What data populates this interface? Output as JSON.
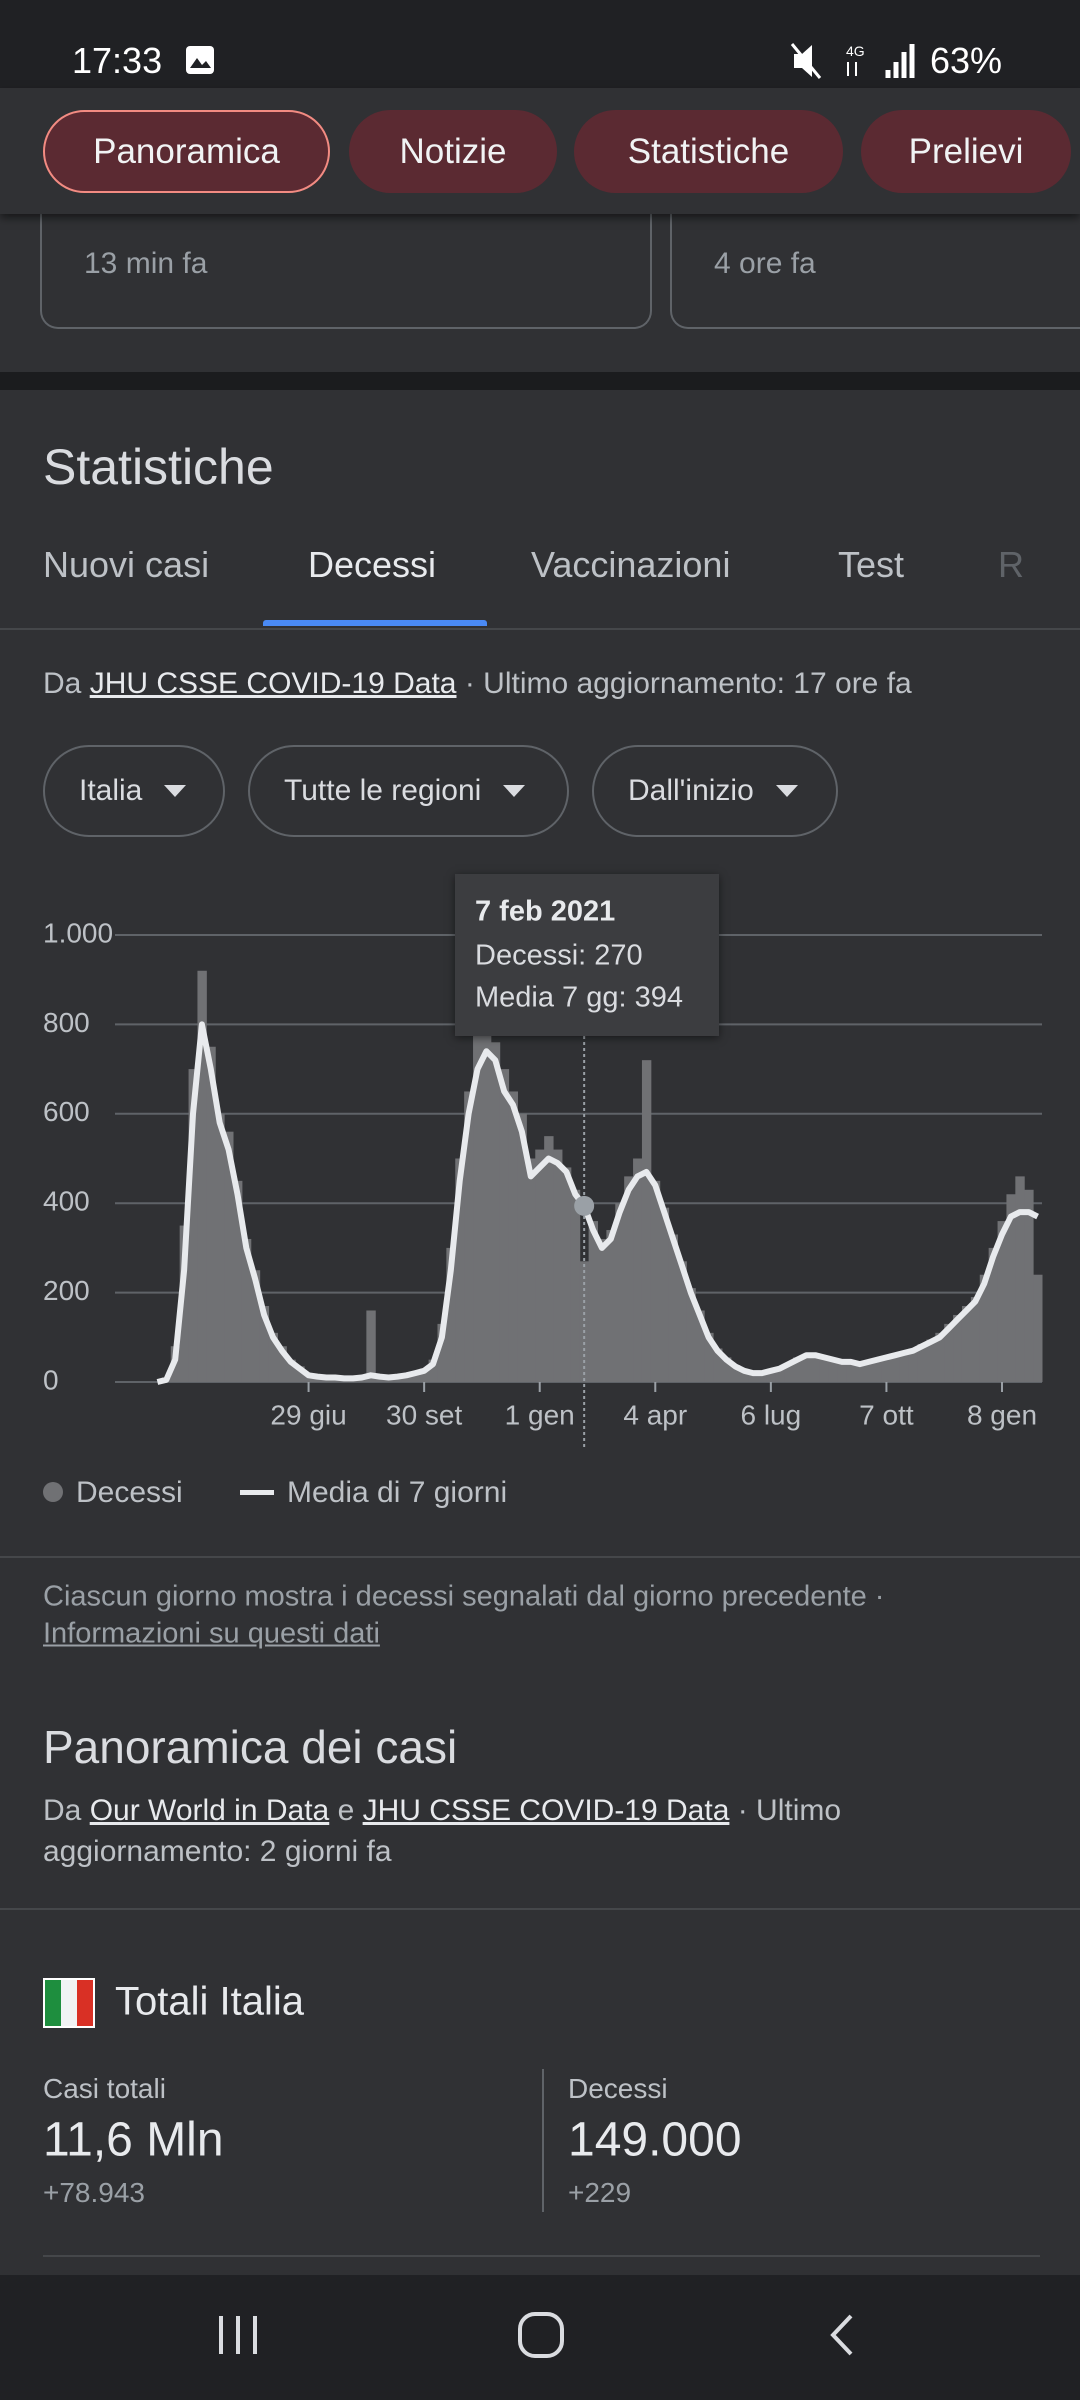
{
  "status_bar": {
    "time": "17:33",
    "battery": "63%"
  },
  "nav_chips": [
    "Panoramica",
    "Notizie",
    "Statistiche",
    "Prelievi"
  ],
  "news_cards": [
    {
      "time": "13 min fa"
    },
    {
      "time": "4 ore fa"
    }
  ],
  "stats_section": {
    "title": "Statistiche",
    "tabs": [
      "Nuovi casi",
      "Decessi",
      "Vaccinazioni",
      "Test",
      "R"
    ],
    "source": {
      "prefix": "Da",
      "link": "JHU CSSE COVID-19 Data",
      "suffix": "· Ultimo aggiornamento: 17 ore fa"
    },
    "filters": [
      "Italia",
      "Tutte le regioni",
      "Dall'inizio"
    ],
    "tooltip": {
      "date": "7 feb 2021",
      "deaths": "Decessi: 270",
      "average": "Media 7 gg: 394"
    },
    "note": "Ciascun giorno mostra i decessi segnalati dal giorno precedente ·",
    "note_link": "Informazioni su questi dati"
  },
  "chart_data": {
    "type": "bar",
    "categories": [
      null,
      null,
      null,
      null,
      null,
      null,
      null,
      null,
      null,
      null,
      null,
      null,
      null,
      null,
      null,
      null,
      null,
      "29 giu",
      null,
      null,
      null,
      null,
      null,
      null,
      null,
      null,
      null,
      null,
      null,
      null,
      "30 set",
      null,
      null,
      null,
      null,
      null,
      null,
      null,
      null,
      null,
      null,
      null,
      null,
      "1 gen",
      null,
      null,
      null,
      null,
      null,
      null,
      null,
      null,
      null,
      null,
      null,
      null,
      "4 apr",
      null,
      null,
      null,
      null,
      null,
      null,
      null,
      null,
      null,
      null,
      null,
      null,
      "6 lug",
      null,
      null,
      null,
      null,
      null,
      null,
      null,
      null,
      null,
      null,
      null,
      null,
      "7 ott",
      null,
      null,
      null,
      null,
      null,
      null,
      null,
      null,
      null,
      null,
      null,
      null,
      "8 gen",
      null,
      null,
      null,
      null
    ],
    "series": [
      {
        "name": "Decessi",
        "type": "bar",
        "color": "#707174",
        "values": [
          0,
          10,
          80,
          350,
          700,
          920,
          750,
          600,
          560,
          450,
          320,
          250,
          170,
          110,
          80,
          50,
          35,
          20,
          15,
          12,
          12,
          10,
          10,
          12,
          160,
          15,
          12,
          15,
          18,
          22,
          30,
          50,
          130,
          300,
          500,
          650,
          780,
          800,
          760,
          700,
          650,
          600,
          500,
          520,
          550,
          520,
          480,
          430,
          270,
          360,
          320,
          340,
          400,
          460,
          500,
          720,
          450,
          390,
          330,
          270,
          210,
          160,
          110,
          75,
          55,
          38,
          28,
          22,
          22,
          28,
          32,
          42,
          55,
          62,
          64,
          58,
          52,
          48,
          46,
          42,
          48,
          52,
          58,
          62,
          68,
          75,
          85,
          95,
          110,
          130,
          150,
          170,
          190,
          240,
          300,
          360,
          420,
          460,
          430,
          240
        ]
      },
      {
        "name": "Media di 7 giorni",
        "type": "line",
        "color": "#e8eaed",
        "values": [
          0,
          5,
          50,
          250,
          600,
          800,
          700,
          580,
          520,
          420,
          300,
          230,
          150,
          100,
          70,
          45,
          30,
          15,
          12,
          10,
          10,
          8,
          8,
          10,
          15,
          12,
          10,
          12,
          15,
          20,
          25,
          40,
          100,
          250,
          450,
          600,
          700,
          740,
          720,
          650,
          620,
          560,
          460,
          480,
          500,
          490,
          470,
          420,
          394,
          340,
          300,
          320,
          380,
          430,
          460,
          470,
          440,
          380,
          320,
          260,
          200,
          150,
          100,
          70,
          50,
          35,
          25,
          20,
          20,
          25,
          30,
          40,
          50,
          60,
          60,
          55,
          50,
          45,
          45,
          40,
          45,
          50,
          55,
          60,
          65,
          70,
          80,
          90,
          100,
          120,
          140,
          160,
          180,
          220,
          280,
          330,
          370,
          380,
          380,
          370
        ]
      }
    ],
    "ylim": [
      0,
      1000
    ],
    "yticks": [
      0,
      200,
      400,
      600,
      800,
      {
        "value": 1000,
        "label": "1.000"
      }
    ],
    "grid": true,
    "highlight_index": 48
  },
  "overview": {
    "title": "Panoramica dei casi",
    "source": {
      "prefix": "Da",
      "link1": "Our World in Data",
      "conj": "e",
      "link2": "JHU CSSE COVID-19 Data",
      "suffix": "· Ultimo aggiornamento: 2 giorni fa"
    },
    "totals": {
      "title": "Totali Italia",
      "cells": [
        {
          "label": "Casi totali",
          "value": "11,6 Mln",
          "change": "+78.943"
        },
        {
          "label": "Decessi",
          "value": "149.000",
          "change": "+229"
        }
      ]
    }
  }
}
